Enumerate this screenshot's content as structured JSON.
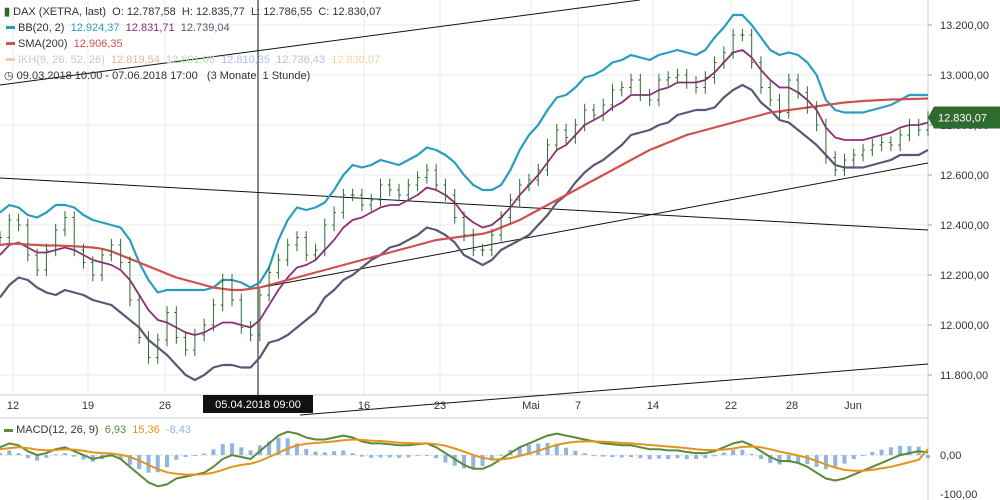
{
  "legend": {
    "dax": {
      "name": "DAX (XETRA, last)",
      "open": "O: 12.787,58",
      "high": "H: 12.835,77",
      "low": "L: 12.786,55",
      "close": "C: 12.830,07"
    },
    "bb": {
      "name": "BB(20, 2)",
      "v1": "12.924,37",
      "v2": "12.831,71",
      "v3": "12.739,04"
    },
    "sma": {
      "name": "SMA(200)",
      "v1": "12.906,35"
    },
    "ikh": {
      "name": "IKH(9, 26, 52, 26)",
      "v1": "12.819,54",
      "v2": "12.801,06",
      "v3": "12.810,35",
      "v4": "12.736,43",
      "v5": "12.830,07"
    },
    "range": "09.03.2018 10:00 - 07.06.2018 17:00",
    "period": "(3 Monate, 1 Stunde)",
    "macd": {
      "name": "MACD(12, 26, 9)",
      "v1": "6,93",
      "v2": "15,36",
      "v3": "-8,43"
    }
  },
  "colors": {
    "price": "#2f6b2f",
    "bb_upper": "#2a9dbf",
    "bb_mid": "#8e2e7a",
    "bb_lower": "#5d5675",
    "sma": "#d0504f",
    "macd": "#5a8a3a",
    "signal": "#e3941a",
    "hist": "#8fb5e0"
  },
  "chart_data": {
    "type": "line",
    "title": "DAX (XETRA, last)",
    "x_tick_labels": [
      "12",
      "19",
      "26",
      "16",
      "23",
      "Mai",
      "7",
      "14",
      "22",
      "28",
      "Jun"
    ],
    "crosshair_label": "05.04.2018 09:00",
    "current_price_label": "12.830,07",
    "y_axis": {
      "ticks": [
        "13.200,00",
        "13.000,00",
        "12.800,00",
        "12.600,00",
        "12.400,00",
        "12.200,00",
        "12.000,00",
        "11.800,00"
      ],
      "values": [
        13200,
        13000,
        12800,
        12600,
        12400,
        12200,
        12000,
        11800
      ],
      "ylim": [
        11720,
        13300
      ]
    },
    "macd_axis": {
      "ticks": [
        "0,00",
        "-100,00"
      ],
      "values": [
        0,
        -100
      ],
      "ylim": [
        -115,
        95
      ]
    },
    "series": [
      {
        "name": "DAX close (approx)",
        "values": [
          12350,
          12420,
          12400,
          12280,
          12220,
          12300,
          12380,
          12430,
          12300,
          12250,
          12200,
          12280,
          12320,
          12250,
          12100,
          11950,
          11870,
          11940,
          12050,
          11950,
          11900,
          11960,
          12000,
          12080,
          12180,
          12100,
          11990,
          11960,
          12120,
          12210,
          12260,
          12320,
          12350,
          12280,
          12300,
          12400,
          12450,
          12520,
          12520,
          12480,
          12500,
          12560,
          12540,
          12520,
          12560,
          12590,
          12620,
          12560,
          12520,
          12430,
          12360,
          12300,
          12300,
          12360,
          12430,
          12500,
          12560,
          12580,
          12620,
          12720,
          12780,
          12750,
          12800,
          12860,
          12840,
          12880,
          12940,
          12950,
          12980,
          12920,
          12900,
          12980,
          12990,
          13000,
          12970,
          12950,
          12990,
          13050,
          13090,
          13160,
          13160,
          13050,
          12950,
          12900,
          12850,
          12980,
          12930,
          12870,
          12800,
          12670,
          12620,
          12660,
          12680,
          12700,
          12720,
          12730,
          12720,
          12760,
          12800,
          12780,
          12830
        ]
      },
      {
        "name": "BB upper (approx)",
        "values": [
          12450,
          12480,
          12470,
          12440,
          12430,
          12450,
          12480,
          12480,
          12470,
          12440,
          12420,
          12410,
          12400,
          12390,
          12340,
          12250,
          12180,
          12130,
          12140,
          12140,
          12140,
          12140,
          12140,
          12150,
          12180,
          12180,
          12170,
          12150,
          12170,
          12230,
          12340,
          12420,
          12470,
          12460,
          12470,
          12490,
          12540,
          12600,
          12640,
          12630,
          12640,
          12660,
          12650,
          12640,
          12660,
          12680,
          12710,
          12700,
          12680,
          12650,
          12600,
          12560,
          12540,
          12540,
          12560,
          12620,
          12700,
          12760,
          12800,
          12860,
          12910,
          12920,
          12950,
          12990,
          13000,
          13020,
          13050,
          13060,
          13080,
          13070,
          13060,
          13080,
          13090,
          13100,
          13090,
          13080,
          13100,
          13150,
          13190,
          13240,
          13240,
          13200,
          13150,
          13100,
          13080,
          13090,
          13080,
          13050,
          13000,
          12900,
          12860,
          12850,
          12850,
          12850,
          12860,
          12870,
          12880,
          12900,
          12920,
          12920,
          12920
        ]
      },
      {
        "name": "BB middle (approx)",
        "values": [
          12280,
          12320,
          12330,
          12310,
          12290,
          12290,
          12300,
          12310,
          12300,
          12280,
          12260,
          12250,
          12240,
          12220,
          12180,
          12120,
          12060,
          12020,
          12010,
          11990,
          11970,
          11960,
          11970,
          11990,
          12010,
          12010,
          12000,
          11990,
          12020,
          12080,
          12140,
          12190,
          12230,
          12240,
          12260,
          12300,
          12340,
          12390,
          12420,
          12430,
          12450,
          12470,
          12480,
          12480,
          12500,
          12520,
          12550,
          12540,
          12520,
          12490,
          12440,
          12410,
          12390,
          12400,
          12430,
          12470,
          12520,
          12560,
          12600,
          12650,
          12700,
          12720,
          12760,
          12800,
          12820,
          12840,
          12870,
          12890,
          12920,
          12920,
          12920,
          12940,
          12950,
          12970,
          12970,
          12970,
          12980,
          13010,
          13050,
          13090,
          13100,
          13070,
          13020,
          12980,
          12950,
          12950,
          12930,
          12900,
          12860,
          12790,
          12750,
          12740,
          12740,
          12740,
          12750,
          12760,
          12770,
          12790,
          12800,
          12800,
          12810
        ]
      },
      {
        "name": "BB lower (approx)",
        "values": [
          12110,
          12160,
          12190,
          12180,
          12150,
          12130,
          12120,
          12140,
          12130,
          12120,
          12100,
          12090,
          12080,
          12050,
          12020,
          11990,
          11940,
          11910,
          11880,
          11840,
          11800,
          11780,
          11800,
          11830,
          11840,
          11840,
          11830,
          11830,
          11870,
          11930,
          11940,
          11960,
          11990,
          12020,
          12050,
          12110,
          12140,
          12180,
          12200,
          12230,
          12260,
          12280,
          12310,
          12320,
          12340,
          12360,
          12390,
          12380,
          12360,
          12330,
          12280,
          12260,
          12240,
          12260,
          12300,
          12320,
          12340,
          12360,
          12400,
          12440,
          12490,
          12520,
          12570,
          12610,
          12640,
          12660,
          12690,
          12720,
          12760,
          12770,
          12780,
          12800,
          12810,
          12840,
          12850,
          12860,
          12860,
          12870,
          12910,
          12940,
          12960,
          12940,
          12890,
          12860,
          12820,
          12810,
          12780,
          12750,
          12720,
          12680,
          12640,
          12630,
          12630,
          12630,
          12640,
          12650,
          12660,
          12680,
          12680,
          12680,
          12700
        ]
      },
      {
        "name": "SMA(200) (approx)",
        "values": [
          12320,
          12325,
          12325,
          12322,
          12320,
          12318,
          12318,
          12317,
          12315,
          12313,
          12310,
          12305,
          12295,
          12280,
          12265,
          12250,
          12235,
          12220,
          12205,
          12190,
          12180,
          12170,
          12160,
          12150,
          12145,
          12140,
          12140,
          12145,
          12150,
          12160,
          12170,
          12180,
          12190,
          12200,
          12210,
          12220,
          12230,
          12240,
          12250,
          12260,
          12270,
          12280,
          12290,
          12300,
          12310,
          12320,
          12330,
          12340,
          12345,
          12350,
          12355,
          12360,
          12365,
          12375,
          12390,
          12405,
          12420,
          12440,
          12460,
          12480,
          12500,
          12520,
          12540,
          12560,
          12580,
          12600,
          12620,
          12640,
          12660,
          12680,
          12700,
          12715,
          12730,
          12745,
          12760,
          12770,
          12780,
          12790,
          12800,
          12810,
          12820,
          12830,
          12840,
          12850,
          12855,
          12860,
          12865,
          12870,
          12875,
          12880,
          12885,
          12890,
          12893,
          12896,
          12898,
          12900,
          12902,
          12903,
          12904,
          12905,
          12906
        ]
      },
      {
        "name": "MACD (approx)",
        "values": [
          20,
          30,
          25,
          10,
          0,
          5,
          15,
          20,
          10,
          0,
          -10,
          -5,
          0,
          -10,
          -30,
          -50,
          -70,
          -80,
          -75,
          -60,
          -55,
          -50,
          -45,
          -30,
          -10,
          0,
          -5,
          -10,
          10,
          30,
          50,
          60,
          55,
          45,
          40,
          40,
          45,
          50,
          45,
          35,
          30,
          30,
          28,
          25,
          25,
          28,
          30,
          20,
          5,
          -10,
          -25,
          -35,
          -35,
          -25,
          -10,
          5,
          20,
          30,
          40,
          50,
          55,
          50,
          45,
          40,
          35,
          30,
          28,
          25,
          25,
          20,
          15,
          15,
          12,
          12,
          8,
          5,
          5,
          10,
          20,
          30,
          35,
          25,
          10,
          -5,
          -15,
          -15,
          -20,
          -30,
          -45,
          -60,
          -65,
          -60,
          -50,
          -40,
          -30,
          -20,
          -10,
          0,
          5,
          10,
          7
        ]
      },
      {
        "name": "Signal (approx)",
        "values": [
          15,
          18,
          20,
          18,
          14,
          12,
          13,
          15,
          14,
          11,
          7,
          5,
          4,
          1,
          -5,
          -14,
          -25,
          -36,
          -44,
          -48,
          -50,
          -50,
          -49,
          -45,
          -38,
          -30,
          -25,
          -22,
          -15,
          -5,
          6,
          17,
          25,
          29,
          31,
          33,
          35,
          38,
          40,
          39,
          37,
          36,
          34,
          32,
          31,
          30,
          30,
          28,
          24,
          17,
          9,
          0,
          -7,
          -11,
          -11,
          -8,
          -2,
          4,
          11,
          19,
          26,
          31,
          34,
          35,
          35,
          34,
          33,
          31,
          30,
          28,
          26,
          24,
          22,
          20,
          18,
          15,
          13,
          13,
          14,
          17,
          21,
          22,
          20,
          15,
          9,
          4,
          -1,
          -7,
          -15,
          -24,
          -32,
          -38,
          -40,
          -40,
          -38,
          -34,
          -30,
          -24,
          -18,
          -12,
          15
        ]
      }
    ]
  }
}
